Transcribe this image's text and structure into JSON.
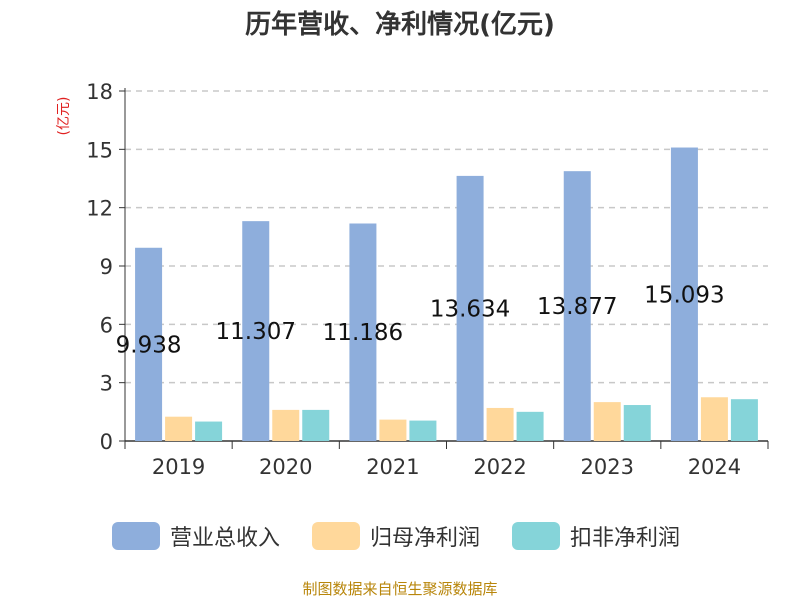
{
  "chart_data": {
    "type": "bar",
    "title": "历年营收、净利情况(亿元)",
    "ylabel": "(亿元)",
    "xlabel": "",
    "categories": [
      "2019",
      "2020",
      "2021",
      "2022",
      "2023",
      "2024"
    ],
    "ylim": [
      0,
      18
    ],
    "yticks": [
      "0",
      "3",
      "6",
      "9",
      "12",
      "15",
      "18"
    ],
    "grid": true,
    "legend_position": "bottom",
    "series": [
      {
        "name": "营业总收入",
        "color": "#8eaedc",
        "values": [
          9.938,
          11.307,
          11.186,
          13.634,
          13.877,
          15.093
        ],
        "labels": [
          "9.938",
          "11.307",
          "11.186",
          "13.634",
          "13.877",
          "15.093"
        ]
      },
      {
        "name": "归母净利润",
        "color": "#ffd89b",
        "values": [
          1.25,
          1.6,
          1.1,
          1.7,
          2.0,
          2.25
        ]
      },
      {
        "name": "扣非净利润",
        "color": "#85d4d9",
        "values": [
          1.0,
          1.6,
          1.05,
          1.5,
          1.85,
          2.15
        ]
      }
    ],
    "source": "制图数据来自恒生聚源数据库"
  }
}
